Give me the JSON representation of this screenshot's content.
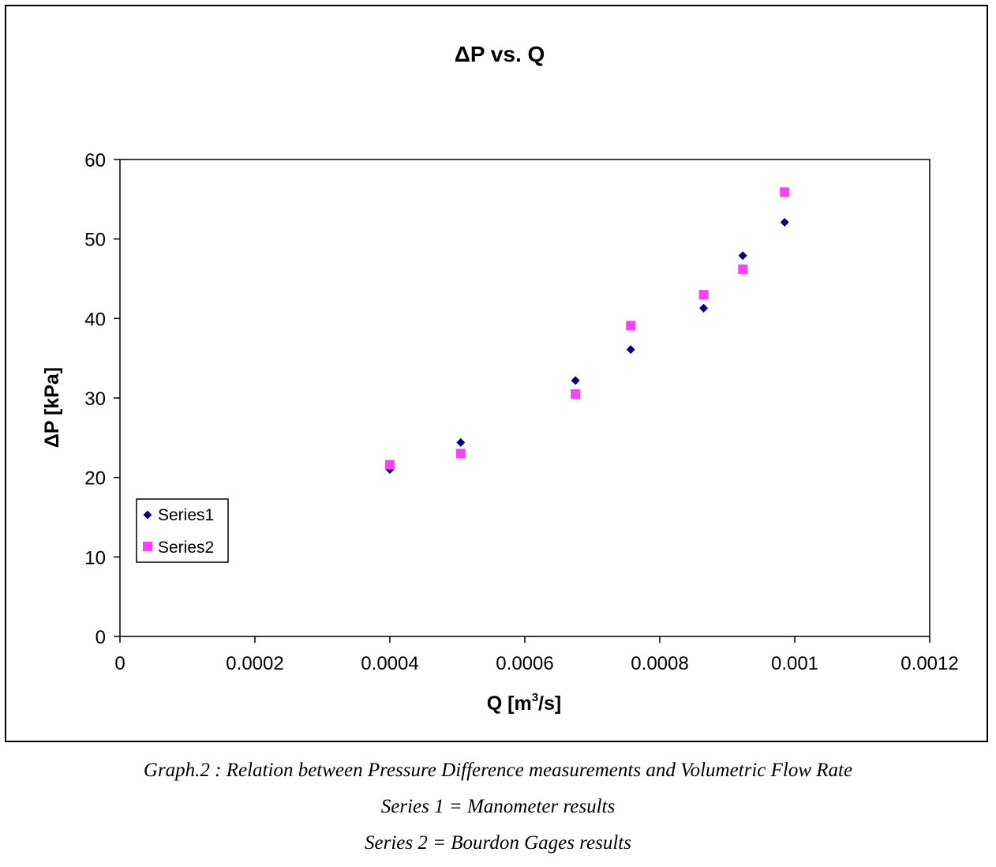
{
  "chart_data": {
    "type": "scatter",
    "title": "ΔP vs. Q",
    "xlabel": {
      "main": "Q [m",
      "sup": "3",
      "tail": "/s]"
    },
    "ylabel": "ΔP [kPa]",
    "xlim": [
      0,
      0.0012
    ],
    "ylim": [
      0,
      60
    ],
    "xticks": [
      {
        "value": 0,
        "label": "0"
      },
      {
        "value": 0.0002,
        "label": "0.0002"
      },
      {
        "value": 0.0004,
        "label": "0.0004"
      },
      {
        "value": 0.0006,
        "label": "0.0006"
      },
      {
        "value": 0.0008,
        "label": "0.0008"
      },
      {
        "value": 0.001,
        "label": "0.001"
      },
      {
        "value": 0.0012,
        "label": "0.0012"
      }
    ],
    "yticks": [
      {
        "value": 0,
        "label": "0"
      },
      {
        "value": 10,
        "label": "10"
      },
      {
        "value": 20,
        "label": "20"
      },
      {
        "value": 30,
        "label": "30"
      },
      {
        "value": 40,
        "label": "40"
      },
      {
        "value": 50,
        "label": "50"
      },
      {
        "value": 60,
        "label": "60"
      }
    ],
    "grid": false,
    "legend_position": "left",
    "series": [
      {
        "name": "Series1",
        "marker": "diamond",
        "color": "#000080",
        "points": [
          {
            "x": 0.0004,
            "y": 21
          },
          {
            "x": 0.000505,
            "y": 24.4
          },
          {
            "x": 0.000675,
            "y": 32.2
          },
          {
            "x": 0.000757,
            "y": 36.1
          },
          {
            "x": 0.000865,
            "y": 41.3
          },
          {
            "x": 0.000923,
            "y": 47.9
          },
          {
            "x": 0.000985,
            "y": 52.1
          }
        ]
      },
      {
        "name": "Series2",
        "marker": "square",
        "color": "#ff3fff",
        "points": [
          {
            "x": 0.0004,
            "y": 21.6
          },
          {
            "x": 0.000505,
            "y": 23
          },
          {
            "x": 0.000675,
            "y": 30.5
          },
          {
            "x": 0.000757,
            "y": 39.1
          },
          {
            "x": 0.000865,
            "y": 43
          },
          {
            "x": 0.000923,
            "y": 46.2
          },
          {
            "x": 0.000985,
            "y": 55.9
          }
        ]
      }
    ]
  },
  "captions": {
    "line1": "Graph.2 : Relation between Pressure Difference measurements and Volumetric Flow Rate",
    "line2": "Series 1 = Manometer results",
    "line3": "Series 2 = Bourdon Gages results"
  }
}
